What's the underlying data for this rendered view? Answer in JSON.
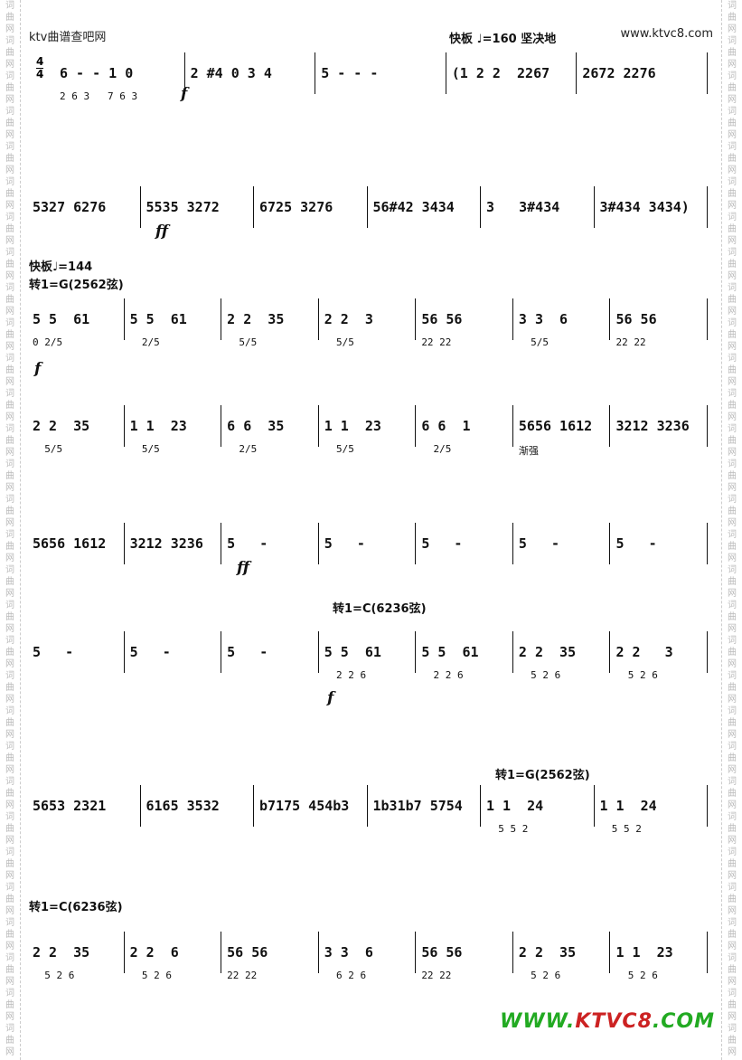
{
  "watermark": {
    "site": "ktv曲谱查吧网",
    "url": "www.ktvc8.com",
    "logo": "WWW.KTVC8.COM",
    "margin_chars": "词曲网"
  },
  "time_signature": {
    "top": "4",
    "bottom": "4"
  },
  "tempo1": "快板 ♩=160  坚决地",
  "tempo2": "快板♩=144",
  "keys": {
    "g1": "转1=G(2562弦)",
    "c1": "转1=C(6236弦)",
    "g2": "转1=G(2562弦)",
    "c2": "转1=C(6236弦)"
  },
  "expression": "渐强",
  "dynamics": {
    "f": "f",
    "ff": "ff"
  },
  "rows": [
    {
      "measures": [
        {
          "top": "6 - - 1 0",
          "low": "2 6 3   7 6 3"
        },
        {
          "top": "2 #4 0 3 4",
          "low": ""
        },
        {
          "top": "5 - - -",
          "low": ""
        },
        {
          "top": "(1 2 2  2267",
          "low": ""
        },
        {
          "top": "2672 2276",
          "low": ""
        }
      ]
    },
    {
      "measures": [
        {
          "top": "5327 6276",
          "low": ""
        },
        {
          "top": "5535 3272",
          "low": ""
        },
        {
          "top": "6725 3276",
          "low": ""
        },
        {
          "top": "56#42 3434",
          "low": ""
        },
        {
          "top": "3   3#434",
          "low": ""
        },
        {
          "top": "3#434 3434)",
          "low": ""
        }
      ]
    },
    {
      "measures": [
        {
          "top": "5 5  61",
          "low": "0 2/5"
        },
        {
          "top": "5 5  61",
          "low": "  2/5"
        },
        {
          "top": "2 2  35",
          "low": "  5/5"
        },
        {
          "top": "2 2  3",
          "low": "  5/5"
        },
        {
          "top": "56 56",
          "low": "22 22"
        },
        {
          "top": "3 3  6",
          "low": "  5/5"
        },
        {
          "top": "56 56",
          "low": "22 22"
        }
      ]
    },
    {
      "measures": [
        {
          "top": "2 2  35",
          "low": "  5/5"
        },
        {
          "top": "1 1  23",
          "low": "  5/5"
        },
        {
          "top": "6 6  35",
          "low": "  2/5"
        },
        {
          "top": "1 1  23",
          "low": "  5/5"
        },
        {
          "top": "6 6  1",
          "low": "  2/5"
        },
        {
          "top": "5656 1612",
          "low": "渐强"
        },
        {
          "top": "3212 3236",
          "low": ""
        }
      ]
    },
    {
      "measures": [
        {
          "top": "5656 1612",
          "low": ""
        },
        {
          "top": "3212 3236",
          "low": ""
        },
        {
          "top": "5   -",
          "low": ""
        },
        {
          "top": "5   -",
          "low": ""
        },
        {
          "top": "5   -",
          "low": ""
        },
        {
          "top": "5   -",
          "low": ""
        },
        {
          "top": "5   -",
          "low": ""
        }
      ]
    },
    {
      "measures": [
        {
          "top": "5   -",
          "low": ""
        },
        {
          "top": "5   -",
          "low": ""
        },
        {
          "top": "5   -",
          "low": ""
        },
        {
          "top": "5 5  61",
          "low": "  2 2 6"
        },
        {
          "top": "5 5  61",
          "low": "  2 2 6"
        },
        {
          "top": "2 2  35",
          "low": "  5 2 6"
        },
        {
          "top": "2 2   3",
          "low": "  5 2 6"
        }
      ]
    },
    {
      "measures": [
        {
          "top": "5653 2321",
          "low": ""
        },
        {
          "top": "6165 3532",
          "low": ""
        },
        {
          "top": "b7175 454b3",
          "low": ""
        },
        {
          "top": "1b31b7 5754",
          "low": ""
        },
        {
          "top": "1 1  24",
          "low": "  5 5 2"
        },
        {
          "top": "1 1  24",
          "low": "  5 5 2"
        }
      ]
    },
    {
      "measures": [
        {
          "top": "2 2  35",
          "low": "  5 2 6"
        },
        {
          "top": "2 2  6",
          "low": "  5 2 6"
        },
        {
          "top": "56 56",
          "low": "22 22"
        },
        {
          "top": "3 3  6",
          "low": "  6 2 6"
        },
        {
          "top": "56 56",
          "low": "22 22"
        },
        {
          "top": "2 2  35",
          "low": "  5 2 6"
        },
        {
          "top": "1 1  23",
          "low": "  5 2 6"
        }
      ]
    }
  ]
}
